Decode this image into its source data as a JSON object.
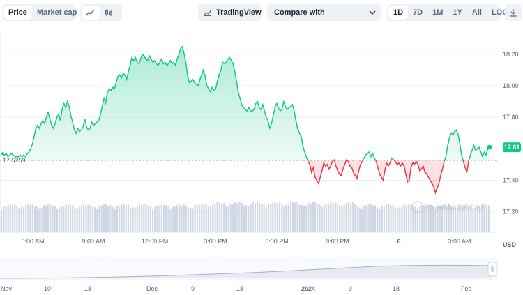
{
  "toolbar": {
    "tabs": [
      {
        "label": "Price",
        "active": true
      },
      {
        "label": "Market cap",
        "active": false
      }
    ],
    "chart_modes": [
      {
        "icon": "line-chart-icon",
        "active": true
      },
      {
        "icon": "candlestick-icon",
        "active": false
      }
    ],
    "tradingview_label": "TradingView",
    "compare_label": "Compare with",
    "ranges": [
      {
        "label": "1D",
        "active": true
      },
      {
        "label": "7D",
        "active": false
      },
      {
        "label": "1M",
        "active": false
      },
      {
        "label": "1Y",
        "active": false
      },
      {
        "label": "All",
        "active": false
      },
      {
        "label": "LOG",
        "active": false
      }
    ],
    "download_icon": "download-icon"
  },
  "colors": {
    "up": "#16c784",
    "down": "#ea3943",
    "volume": "#cfd6e4",
    "grid": "#eff2f5"
  },
  "chart_data": {
    "type": "line",
    "y_ticks": [
      "18.20",
      "18.00",
      "17.80",
      "17.60",
      "17.40",
      "17.20"
    ],
    "ylim": [
      17.07,
      18.35
    ],
    "x_ticks": [
      "6:00 AM",
      "9:00 AM",
      "12:00 PM",
      "3:00 PM",
      "6:00 PM",
      "9:00 PM",
      "6",
      "3:00 AM"
    ],
    "x_unit": "USD",
    "reference_price": "17.5259",
    "reference_value": 17.5259,
    "current_price": "17.61",
    "watermark": "CoinMarketCap",
    "series": [
      {
        "values": [
          17.57,
          17.56,
          17.57,
          17.55,
          17.56,
          17.57,
          17.56,
          17.55,
          17.55,
          17.55,
          17.56,
          17.55,
          17.56,
          17.55,
          17.57,
          17.58,
          17.6,
          17.63,
          17.68,
          17.73,
          17.75,
          17.73,
          17.76,
          17.78,
          17.76,
          17.8,
          17.83,
          17.79,
          17.75,
          17.73,
          17.76,
          17.8,
          17.82,
          17.78,
          17.85,
          17.89,
          17.86,
          17.9,
          17.87,
          17.81,
          17.77,
          17.72,
          17.7,
          17.73,
          17.71,
          17.72,
          17.74,
          17.79,
          17.74,
          17.72,
          17.73,
          17.77,
          17.75,
          17.76,
          17.77,
          17.78,
          17.82,
          17.87,
          17.92,
          17.89,
          17.96,
          17.98,
          17.97,
          17.99,
          17.98,
          18.02,
          18.06,
          18.07,
          18.05,
          18.08,
          18.07,
          18.04,
          18.09,
          18.13,
          18.18,
          18.16,
          18.18,
          18.15,
          18.14,
          18.17,
          18.2,
          18.19,
          18.17,
          18.16,
          18.19,
          18.17,
          18.15,
          18.16,
          18.14,
          18.13,
          18.15,
          18.17,
          18.14,
          18.15,
          18.13,
          18.14,
          18.16,
          18.14,
          18.15,
          18.13,
          18.17,
          18.2,
          18.24,
          18.25,
          18.2,
          18.14,
          18.06,
          18.02,
          18.03,
          18.04,
          18.02,
          18.01,
          18.0,
          18.04,
          18.07,
          18.1,
          18.06,
          18.0,
          17.98,
          17.96,
          17.99,
          17.97,
          17.98,
          18.03,
          18.07,
          18.1,
          18.15,
          18.14,
          18.15,
          18.17,
          18.18,
          18.16,
          18.14,
          18.09,
          18.03,
          17.96,
          17.92,
          17.88,
          17.86,
          17.85,
          17.84,
          17.86,
          17.84,
          17.84,
          17.85,
          17.89,
          17.9,
          17.86,
          17.85,
          17.88,
          17.84,
          17.8,
          17.78,
          17.73,
          17.76,
          17.81,
          17.86,
          17.89,
          17.86,
          17.84,
          17.85,
          17.9,
          17.87,
          17.85,
          17.86,
          17.87,
          17.88,
          17.84,
          17.78,
          17.73,
          17.7,
          17.68,
          17.62,
          17.58,
          17.55,
          17.52,
          17.5,
          17.45,
          17.48,
          17.42,
          17.4,
          17.38,
          17.42,
          17.46,
          17.51,
          17.49,
          17.5,
          17.47,
          17.49,
          17.52,
          17.53,
          17.49,
          17.46,
          17.44,
          17.43,
          17.47,
          17.5,
          17.53,
          17.52,
          17.49,
          17.48,
          17.45,
          17.43,
          17.41,
          17.46,
          17.5,
          17.52,
          17.54,
          17.56,
          17.57,
          17.58,
          17.55,
          17.57,
          17.54,
          17.52,
          17.48,
          17.44,
          17.42,
          17.4,
          17.46,
          17.51,
          17.49,
          17.51,
          17.54,
          17.53,
          17.52,
          17.5,
          17.51,
          17.49,
          17.51,
          17.49,
          17.44,
          17.39,
          17.4,
          17.48,
          17.51,
          17.5,
          17.52,
          17.5,
          17.46,
          17.47,
          17.49,
          17.45,
          17.44,
          17.42,
          17.4,
          17.38,
          17.36,
          17.32,
          17.35,
          17.38,
          17.43,
          17.47,
          17.52,
          17.55,
          17.62,
          17.67,
          17.7,
          17.69,
          17.71,
          17.72,
          17.69,
          17.63,
          17.56,
          17.52,
          17.48,
          17.45,
          17.52,
          17.56,
          17.59,
          17.62,
          17.59,
          17.6,
          17.61,
          17.58,
          17.55,
          17.58,
          17.56,
          17.6,
          17.61
        ]
      }
    ]
  }
}
